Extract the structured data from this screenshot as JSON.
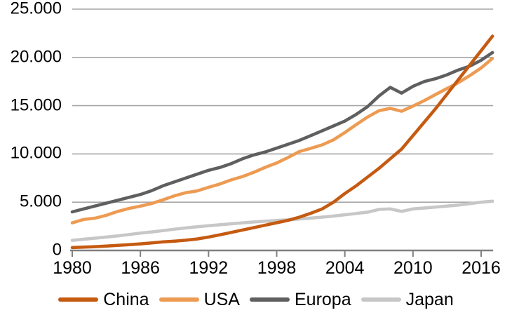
{
  "chart_data": {
    "type": "line",
    "x_years": [
      1980,
      1981,
      1982,
      1983,
      1984,
      1985,
      1986,
      1987,
      1988,
      1989,
      1990,
      1991,
      1992,
      1993,
      1994,
      1995,
      1996,
      1997,
      1998,
      1999,
      2000,
      2001,
      2002,
      2003,
      2004,
      2005,
      2006,
      2007,
      2008,
      2009,
      2010,
      2011,
      2012,
      2013,
      2014,
      2015,
      2016,
      2017
    ],
    "xticks": [
      "1980",
      "1986",
      "1992",
      "1998",
      "2004",
      "2010",
      "2016"
    ],
    "yticks": [
      "0",
      "5.000",
      "10.000",
      "15.000",
      "20.000",
      "25.000"
    ],
    "ylim": [
      0,
      25000
    ],
    "grid": "horizontal",
    "legend_position": "bottom",
    "colors": {
      "gridline": "#A6A6A6",
      "axis": "#808080",
      "text": "#000000"
    },
    "series": [
      {
        "name": "China",
        "color": "#C55A11",
        "values": [
          300,
          340,
          390,
          450,
          520,
          600,
          680,
          780,
          890,
          970,
          1060,
          1190,
          1390,
          1620,
          1870,
          2120,
          2370,
          2620,
          2870,
          3120,
          3450,
          3850,
          4300,
          5000,
          5900,
          6700,
          7600,
          8500,
          9500,
          10500,
          11900,
          13300,
          14700,
          16200,
          17700,
          19200,
          20700,
          22200
        ]
      },
      {
        "name": "USA",
        "color": "#ED9B52",
        "values": [
          2860,
          3210,
          3340,
          3640,
          4040,
          4350,
          4590,
          4870,
          5250,
          5660,
          5980,
          6170,
          6540,
          6880,
          7310,
          7660,
          8100,
          8610,
          9060,
          9630,
          10250,
          10580,
          10940,
          11460,
          12220,
          13040,
          13820,
          14480,
          14720,
          14420,
          14960,
          15520,
          16160,
          16780,
          17390,
          18120,
          18900,
          19900
        ]
      },
      {
        "name": "Europa",
        "color": "#5F5F5F",
        "values": [
          4000,
          4300,
          4600,
          4900,
          5200,
          5500,
          5800,
          6200,
          6700,
          7100,
          7500,
          7900,
          8300,
          8600,
          9000,
          9500,
          9900,
          10200,
          10600,
          11000,
          11400,
          11900,
          12400,
          12900,
          13400,
          14100,
          14900,
          16000,
          16900,
          16300,
          17000,
          17500,
          17800,
          18200,
          18700,
          19100,
          19700,
          20500
        ]
      },
      {
        "name": "Japan",
        "color": "#C7C7C7",
        "values": [
          1050,
          1160,
          1270,
          1390,
          1510,
          1650,
          1800,
          1920,
          2060,
          2200,
          2330,
          2450,
          2560,
          2660,
          2760,
          2860,
          2950,
          3030,
          3100,
          3170,
          3260,
          3350,
          3450,
          3560,
          3700,
          3830,
          3970,
          4250,
          4300,
          4050,
          4300,
          4400,
          4500,
          4600,
          4700,
          4850,
          5000,
          5100
        ]
      }
    ]
  }
}
